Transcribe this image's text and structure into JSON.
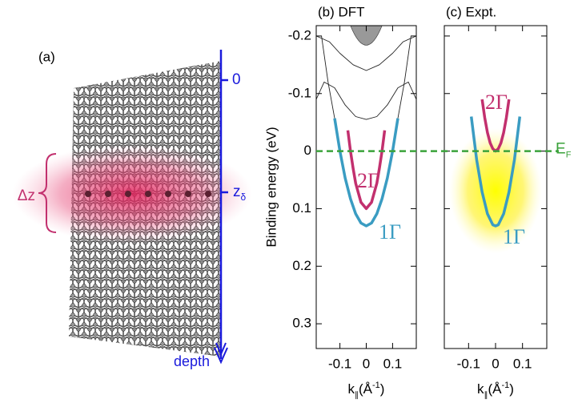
{
  "panel_a": {
    "label": "(a)",
    "zero": "0",
    "z": "z",
    "delta": "δ",
    "dz": "Δz",
    "depth": "depth"
  },
  "fermi_level": {
    "value": 0,
    "label": "E",
    "subscript": "F",
    "color": "#3aa23a"
  },
  "chart_data": [
    {
      "type": "line",
      "title": "(b) DFT",
      "ylabel": "Binding energy (eV)",
      "xlabel": {
        "text": "k",
        "sub": "∥",
        "unit": "(Å",
        "exp": "-1",
        "close": ")"
      },
      "xlim": [
        -0.19,
        0.19
      ],
      "ylim": [
        0.343,
        -0.218
      ],
      "xticks": [
        -0.1,
        0,
        0.1
      ],
      "yticks": [
        -0.2,
        -0.1,
        0,
        0.1,
        0.2,
        0.3
      ],
      "series": [
        {
          "name": "1Γ",
          "color": "#3a9cc2",
          "x": [
            -0.12,
            -0.1,
            -0.08,
            -0.06,
            -0.04,
            -0.02,
            0,
            0.02,
            0.04,
            0.06,
            0.08,
            0.1,
            0.12
          ],
          "y": [
            -0.057,
            0,
            0.047,
            0.083,
            0.109,
            0.125,
            0.13,
            0.125,
            0.109,
            0.083,
            0.047,
            0,
            -0.057
          ]
        },
        {
          "name": "2Γ",
          "color": "#c2306e",
          "x": [
            -0.07,
            -0.06,
            -0.05,
            -0.04,
            -0.02,
            0,
            0.02,
            0.04,
            0.05,
            0.06,
            0.07
          ],
          "y": [
            -0.036,
            0,
            0.03,
            0.056,
            0.089,
            0.1,
            0.089,
            0.056,
            0.03,
            0,
            -0.036
          ]
        },
        {
          "color": "#222222",
          "x": [
            -0.17,
            -0.145,
            -0.12,
            0,
            0.12,
            0.145,
            0.17
          ],
          "y": [
            -0.2,
            -0.12,
            -0.057,
            null,
            -0.057,
            -0.12,
            -0.2
          ]
        },
        {
          "color": "#222222",
          "x": [
            -0.19,
            -0.16,
            -0.12,
            -0.08,
            -0.04,
            0,
            0.04,
            0.08,
            0.12,
            0.16,
            0.19
          ],
          "y": [
            -0.09,
            -0.12,
            -0.11,
            -0.08,
            -0.06,
            -0.055,
            -0.06,
            -0.08,
            -0.11,
            -0.12,
            -0.09
          ]
        },
        {
          "color": "#222222",
          "x": [
            -0.19,
            -0.14,
            -0.1,
            -0.05,
            0,
            0.05,
            0.1,
            0.14,
            0.19
          ],
          "y": [
            -0.2,
            -0.19,
            -0.17,
            -0.15,
            -0.14,
            -0.15,
            -0.17,
            -0.19,
            -0.2
          ]
        }
      ]
    },
    {
      "type": "line",
      "title": "(c) Expt.",
      "xlabel": {
        "text": "k",
        "sub": "∥",
        "unit": "(Å",
        "exp": "-1",
        "close": ")"
      },
      "xlim": [
        -0.19,
        0.19
      ],
      "ylim": [
        0.343,
        -0.218
      ],
      "xticks": [
        -0.1,
        0,
        0.1
      ],
      "series": [
        {
          "name": "1Γ",
          "color": "#3a9cc2",
          "x": [
            -0.09,
            -0.07,
            -0.05,
            -0.03,
            -0.01,
            0,
            0.01,
            0.03,
            0.05,
            0.07,
            0.09
          ],
          "y": [
            -0.06,
            0.015,
            0.071,
            0.109,
            0.128,
            0.13,
            0.128,
            0.109,
            0.071,
            0.015,
            -0.06
          ]
        },
        {
          "name": "2Γ",
          "color": "#c2306e",
          "x": [
            -0.05,
            -0.04,
            -0.03,
            -0.02,
            -0.01,
            0,
            0.01,
            0.02,
            0.03,
            0.04,
            0.05
          ],
          "y": [
            -0.09,
            -0.058,
            -0.032,
            -0.014,
            -0.004,
            0,
            -0.004,
            -0.014,
            -0.032,
            -0.058,
            -0.09
          ]
        }
      ]
    }
  ]
}
